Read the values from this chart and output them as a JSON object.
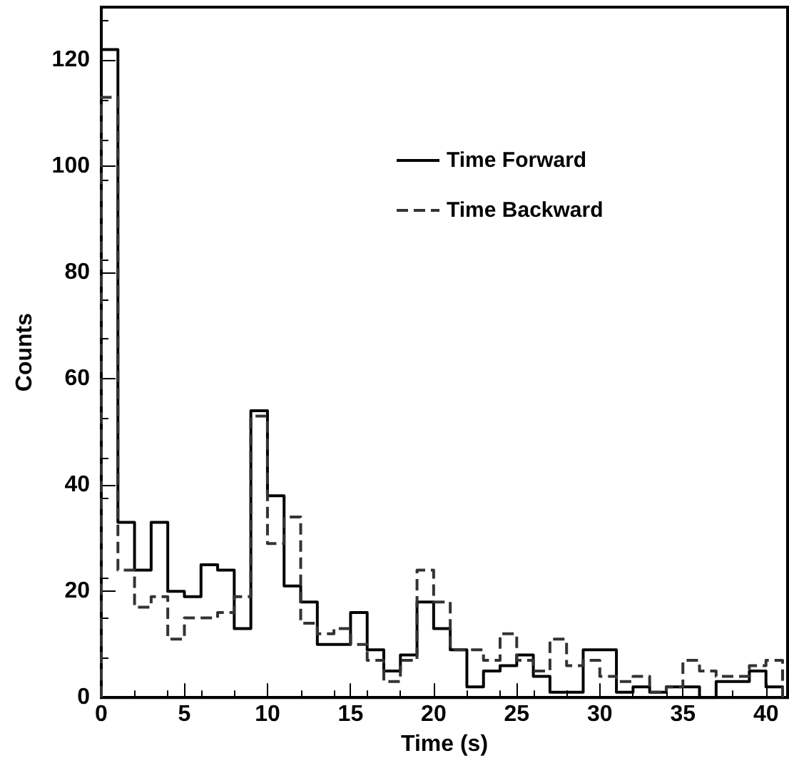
{
  "chart_data": {
    "type": "histogram",
    "xlabel": "Time (s)",
    "ylabel": "Counts",
    "bins": [
      0,
      1,
      2,
      3,
      4,
      5,
      6,
      7,
      8,
      9,
      10,
      11,
      12,
      13,
      14,
      15,
      16,
      17,
      18,
      19,
      20,
      21,
      22,
      23,
      24,
      25,
      26,
      27,
      28,
      29,
      30,
      31,
      32,
      33,
      34,
      35,
      36,
      37,
      38,
      39,
      40,
      41
    ],
    "series": [
      {
        "name": "Time Forward",
        "color": "#000000",
        "line_style": "solid",
        "values": [
          122,
          33,
          24,
          33,
          20,
          19,
          25,
          24,
          13,
          54,
          38,
          21,
          18,
          10,
          10,
          16,
          9,
          5,
          8,
          18,
          13,
          9,
          2,
          5,
          6,
          8,
          4,
          1,
          1,
          9,
          9,
          1,
          2,
          1,
          2,
          2,
          0,
          3,
          3,
          5,
          2
        ]
      },
      {
        "name": "Time Backward",
        "color": "#333333",
        "line_style": "dashed",
        "values": [
          113,
          24,
          17,
          19,
          11,
          15,
          15,
          16,
          19,
          53,
          29,
          34,
          14,
          12,
          13,
          10,
          7,
          3,
          7,
          24,
          18,
          9,
          9,
          7,
          12,
          7,
          5,
          11,
          6,
          7,
          4,
          3,
          4,
          1,
          2,
          7,
          5,
          4,
          4,
          6,
          7
        ]
      }
    ],
    "xlim": [
      0,
      41.3
    ],
    "ylim": [
      0,
      130
    ],
    "xticks": [
      0,
      5,
      10,
      15,
      20,
      25,
      30,
      35,
      40
    ],
    "yticks": [
      0,
      20,
      40,
      60,
      80,
      100,
      120
    ],
    "grid": false,
    "legend": "top right"
  }
}
